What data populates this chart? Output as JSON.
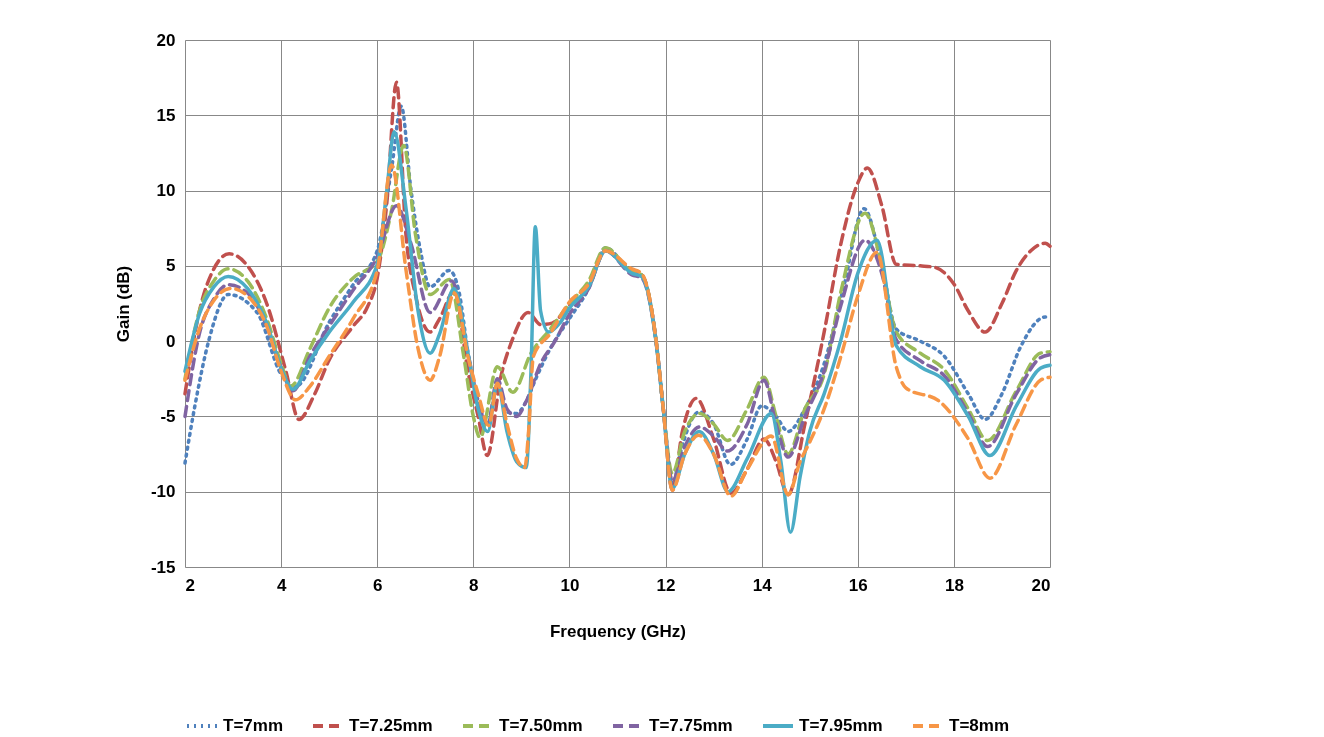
{
  "chart_data": {
    "type": "line",
    "xlabel": "Frequency (GHz)",
    "ylabel": "Gain (dB)",
    "xlim": [
      2,
      20
    ],
    "xticks": [
      2,
      4,
      6,
      8,
      10,
      12,
      14,
      16,
      18,
      20
    ],
    "ylim": [
      -15,
      20
    ],
    "yticks": [
      -15,
      -10,
      -5,
      0,
      5,
      10,
      15,
      20
    ],
    "grid": true,
    "legend": "bottom",
    "marker": "none",
    "series": [
      {
        "name": "T=7mm",
        "color": "#4f81bd",
        "line_style": "dotted",
        "x": [
          2,
          2.2,
          2.5,
          2.9,
          3.5,
          4.0,
          4.3,
          5.0,
          5.5,
          6.0,
          6.3,
          6.5,
          6.7,
          6.9,
          7.1,
          7.5,
          7.7,
          7.9,
          8.1,
          8.3,
          8.5,
          8.7,
          8.9,
          9.1,
          9.3,
          9.6,
          10,
          10.4,
          10.75,
          11.3,
          11.5,
          11.8,
          11.95,
          12.15,
          12.3,
          12.7,
          13.0,
          13.35,
          13.7,
          14.0,
          14.3,
          14.55,
          14.9,
          15.3,
          15.7,
          16.13,
          16.5,
          16.8,
          17.3,
          17.8,
          18.3,
          18.65,
          19.0,
          19.4,
          19.9,
          20
        ],
        "values": [
          -8.1,
          -4.4,
          0.1,
          3.1,
          1.9,
          -2.2,
          -3,
          1.25,
          3.75,
          6,
          11.5,
          15.6,
          10.1,
          6,
          3.6,
          4.7,
          3.3,
          -1,
          -4,
          -5.5,
          -3,
          -4.7,
          -4.8,
          -4,
          -2.5,
          -0.5,
          1.5,
          3.5,
          6.2,
          4.6,
          4.4,
          0.1,
          -4.4,
          -9.5,
          -7.5,
          -4.7,
          -5.5,
          -8.2,
          -6.5,
          -4.3,
          -5,
          -6.0,
          -4.5,
          -1.5,
          3.5,
          8.8,
          5,
          0.8,
          0,
          -1,
          -3.5,
          -5.2,
          -3.5,
          -0.3,
          1.6,
          1.6
        ]
      },
      {
        "name": "T=7.25mm",
        "color": "#c0504d",
        "line_style": "dashed",
        "x": [
          2,
          2.3,
          2.6,
          2.92,
          3.3,
          3.7,
          4.1,
          4.37,
          4.7,
          5,
          5.5,
          5.8,
          6,
          6.2,
          6.4,
          6.6,
          6.8,
          7.1,
          7.3,
          7.6,
          7.9,
          8.1,
          8.29,
          8.57,
          8.8,
          9.14,
          9.4,
          9.64,
          10,
          10.4,
          10.75,
          11.3,
          11.5,
          11.8,
          11.95,
          12.14,
          12.35,
          12.64,
          13.0,
          13.36,
          13.7,
          14.05,
          14.3,
          14.55,
          14.9,
          15.3,
          15.65,
          16.0,
          16.2,
          16.5,
          16.8,
          17.3,
          17.6,
          18.0,
          18.3,
          18.65,
          19.0,
          19.3,
          19.6,
          19.9,
          20
        ],
        "values": [
          -3.5,
          2,
          4.8,
          5.8,
          5,
          2.5,
          -2,
          -5.2,
          -3.5,
          -1.25,
          1.0,
          2.3,
          4.2,
          9.2,
          17.2,
          7,
          3,
          0.6,
          1.5,
          3.3,
          -2.2,
          -5,
          -7.6,
          -2.4,
          0,
          1.9,
          1.1,
          1.2,
          2.4,
          3.6,
          6.0,
          4.6,
          4.4,
          0.1,
          -4.4,
          -9.9,
          -6,
          -3.8,
          -6.5,
          -10.1,
          -8.5,
          -6.5,
          -8,
          -10.2,
          -5.5,
          0.6,
          6.5,
          10.5,
          11.5,
          9,
          5.1,
          5.0,
          4.9,
          3.8,
          2,
          0.6,
          2.5,
          4.7,
          6.0,
          6.5,
          6.3
        ]
      },
      {
        "name": "T=7.50mm",
        "color": "#9bbb59",
        "line_style": "dashed",
        "x": [
          2,
          2.3,
          2.6,
          2.9,
          3.3,
          3.7,
          4.0,
          4.2,
          4.6,
          5.0,
          5.5,
          6.0,
          6.3,
          6.55,
          6.8,
          7.1,
          7.5,
          7.8,
          8.0,
          8.14,
          8.5,
          8.82,
          9.2,
          9.6,
          10,
          10.4,
          10.75,
          11.3,
          11.5,
          11.8,
          11.95,
          12.14,
          12.4,
          12.71,
          13.0,
          13.29,
          13.7,
          14.05,
          14.3,
          14.55,
          14.9,
          15.3,
          15.65,
          16.15,
          16.5,
          16.8,
          17.3,
          17.8,
          18.3,
          18.7,
          19.3,
          19.8,
          20
        ],
        "values": [
          -2.5,
          2,
          4,
          4.8,
          4,
          1.5,
          -1.5,
          -3.0,
          -0.5,
          2.2,
          4.2,
          5.3,
          8.7,
          13,
          7,
          3.1,
          4.1,
          -1,
          -5,
          -6.4,
          -1.7,
          -3.4,
          -0.8,
          0.8,
          2.5,
          4,
          6.2,
          4.6,
          4.4,
          0.1,
          -4.4,
          -8.8,
          -6,
          -4.8,
          -5.5,
          -6.6,
          -4.5,
          -2.4,
          -5,
          -7.5,
          -4.5,
          -2.2,
          3.3,
          8.5,
          5,
          0.6,
          -0.8,
          -1.9,
          -4.5,
          -6.6,
          -3.3,
          -0.8,
          -0.7
        ]
      },
      {
        "name": "T=7.75mm",
        "color": "#8064a2",
        "line_style": "dashed",
        "x": [
          2,
          2.3,
          2.6,
          2.9,
          3.3,
          3.7,
          4.0,
          4.25,
          4.6,
          5.0,
          5.5,
          6.0,
          6.4,
          6.7,
          7.1,
          7.55,
          7.9,
          8.1,
          8.3,
          8.5,
          8.7,
          8.9,
          9.1,
          9.4,
          9.7,
          10,
          10.4,
          10.75,
          11.3,
          11.5,
          11.8,
          11.95,
          12.14,
          12.4,
          12.71,
          13.0,
          13.29,
          13.7,
          14.05,
          14.3,
          14.55,
          14.9,
          15.3,
          15.65,
          16.15,
          16.5,
          16.8,
          17.3,
          17.8,
          18.3,
          18.7,
          19.3,
          19.8,
          20
        ],
        "values": [
          -5,
          0.5,
          2.8,
          3.75,
          3.2,
          1,
          -1.8,
          -3.3,
          -1,
          1.0,
          3.4,
          5.6,
          9,
          6.5,
          1.9,
          4.0,
          -1,
          -4,
          -5.5,
          -2.5,
          -4.5,
          -5.0,
          -4,
          -1.5,
          0,
          1.8,
          3.5,
          6.0,
          4.4,
          4.2,
          0,
          -4.4,
          -9.3,
          -7,
          -5.7,
          -6.3,
          -7.3,
          -5.5,
          -2.6,
          -5.5,
          -7.7,
          -5.0,
          -2.0,
          2.4,
          6.7,
          4.5,
          0.1,
          -1.3,
          -2.3,
          -4.8,
          -7.0,
          -3.5,
          -1.1,
          -0.9
        ]
      },
      {
        "name": "T=7.95mm",
        "color": "#4bacc6",
        "line_style": "solid",
        "x": [
          2,
          2.3,
          2.6,
          2.9,
          3.3,
          3.7,
          4.0,
          4.25,
          4.6,
          5,
          5.5,
          6.0,
          6.2,
          6.35,
          6.6,
          6.85,
          7.1,
          7.3,
          7.6,
          7.9,
          8.1,
          8.3,
          8.5,
          8.7,
          8.9,
          9.1,
          9.2,
          9.29,
          9.4,
          9.57,
          9.8,
          10,
          10.4,
          10.75,
          11.3,
          11.5,
          11.8,
          11.95,
          12.14,
          12.4,
          12.7,
          13.0,
          13.3,
          13.7,
          14.2,
          14.4,
          14.6,
          14.8,
          15.0,
          15.3,
          15.65,
          16.0,
          16.4,
          16.8,
          17.3,
          17.8,
          18.3,
          18.75,
          19.3,
          19.8,
          20
        ],
        "values": [
          -2,
          1.8,
          3.6,
          4.3,
          3.5,
          1.2,
          -1.8,
          -3.2,
          -1.3,
          0.6,
          2.6,
          5.1,
          10,
          13.9,
          8.8,
          2,
          -0.8,
          0.5,
          3.5,
          -1,
          -4.5,
          -6,
          -2.8,
          -6,
          -8,
          -8.4,
          -2,
          7.6,
          2,
          0.6,
          1.2,
          2.2,
          3.6,
          6.0,
          4.5,
          4.3,
          0,
          -4.4,
          -9.8,
          -7.5,
          -6,
          -7.5,
          -10,
          -7.8,
          -4.8,
          -8,
          -12.7,
          -9,
          -6,
          -3.5,
          0.1,
          4.5,
          6.7,
          -0.3,
          -1.7,
          -2.6,
          -5,
          -7.6,
          -4.3,
          -1.8,
          -1.6
        ]
      },
      {
        "name": "T=8mm",
        "color": "#f79646",
        "line_style": "dashed",
        "x": [
          2,
          2.3,
          2.6,
          2.95,
          3.3,
          3.7,
          4.0,
          4.3,
          4.6,
          5.0,
          5.5,
          6.0,
          6.3,
          6.6,
          6.85,
          7.1,
          7.3,
          7.6,
          7.9,
          8.1,
          8.32,
          8.5,
          8.7,
          8.9,
          9.07,
          9.15,
          9.25,
          9.6,
          10,
          10.4,
          10.75,
          11.3,
          11.5,
          11.8,
          11.95,
          12.14,
          12.4,
          12.69,
          13.0,
          13.36,
          13.7,
          14.2,
          14.55,
          14.8,
          15.0,
          15.3,
          15.65,
          16.0,
          16.4,
          16.8,
          17.0,
          17.7,
          18.3,
          18.75,
          19.3,
          19.8,
          20
        ],
        "values": [
          -2.6,
          0.8,
          2.7,
          3.5,
          3,
          1,
          -2,
          -3.9,
          -3,
          -1.0,
          1.5,
          4.7,
          11.7,
          4.7,
          -0.5,
          -2.6,
          -1,
          3.2,
          -1.2,
          -3.5,
          -5.6,
          -2.8,
          -5.5,
          -7.8,
          -8.4,
          -6,
          -1.0,
          0.5,
          2.6,
          3.8,
          6.0,
          4.8,
          4.5,
          0.1,
          -4.4,
          -9.9,
          -7.5,
          -6.25,
          -7.5,
          -10.3,
          -8.5,
          -6.3,
          -10.2,
          -8,
          -6.7,
          -4.5,
          -1.0,
          3,
          5.9,
          -1.7,
          -3.1,
          -4.0,
          -6.5,
          -9.1,
          -5.5,
          -2.6,
          -2.4
        ]
      }
    ]
  }
}
